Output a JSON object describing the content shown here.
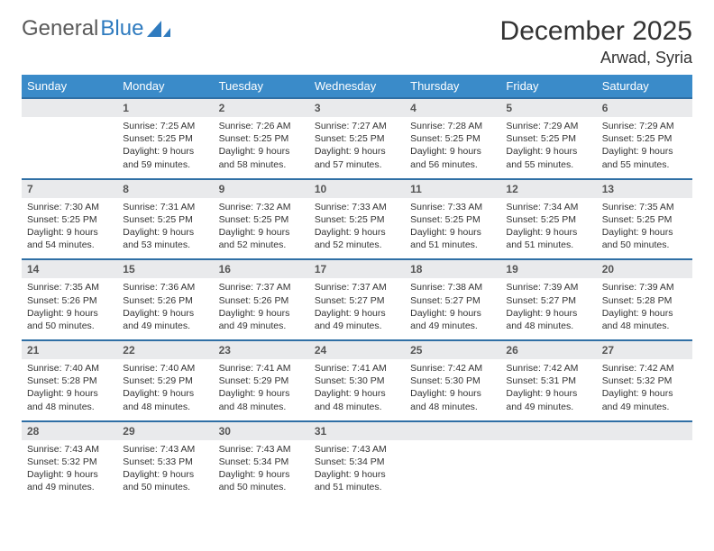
{
  "brand": {
    "part1": "General",
    "part2": "Blue"
  },
  "title": "December 2025",
  "location": "Arwad, Syria",
  "colors": {
    "header_bg": "#3a8bc9",
    "header_text": "#ffffff",
    "daynum_bg": "#e9eaec",
    "row_top_border": "#2f6fa5",
    "brand_gray": "#5a5a5a",
    "brand_blue": "#2f7bbf",
    "body_text": "#333333",
    "page_bg": "#ffffff"
  },
  "weekdays": [
    "Sunday",
    "Monday",
    "Tuesday",
    "Wednesday",
    "Thursday",
    "Friday",
    "Saturday"
  ],
  "weeks": [
    [
      null,
      {
        "n": "1",
        "sr": "Sunrise: 7:25 AM",
        "ss": "Sunset: 5:25 PM",
        "dl1": "Daylight: 9 hours",
        "dl2": "and 59 minutes."
      },
      {
        "n": "2",
        "sr": "Sunrise: 7:26 AM",
        "ss": "Sunset: 5:25 PM",
        "dl1": "Daylight: 9 hours",
        "dl2": "and 58 minutes."
      },
      {
        "n": "3",
        "sr": "Sunrise: 7:27 AM",
        "ss": "Sunset: 5:25 PM",
        "dl1": "Daylight: 9 hours",
        "dl2": "and 57 minutes."
      },
      {
        "n": "4",
        "sr": "Sunrise: 7:28 AM",
        "ss": "Sunset: 5:25 PM",
        "dl1": "Daylight: 9 hours",
        "dl2": "and 56 minutes."
      },
      {
        "n": "5",
        "sr": "Sunrise: 7:29 AM",
        "ss": "Sunset: 5:25 PM",
        "dl1": "Daylight: 9 hours",
        "dl2": "and 55 minutes."
      },
      {
        "n": "6",
        "sr": "Sunrise: 7:29 AM",
        "ss": "Sunset: 5:25 PM",
        "dl1": "Daylight: 9 hours",
        "dl2": "and 55 minutes."
      }
    ],
    [
      {
        "n": "7",
        "sr": "Sunrise: 7:30 AM",
        "ss": "Sunset: 5:25 PM",
        "dl1": "Daylight: 9 hours",
        "dl2": "and 54 minutes."
      },
      {
        "n": "8",
        "sr": "Sunrise: 7:31 AM",
        "ss": "Sunset: 5:25 PM",
        "dl1": "Daylight: 9 hours",
        "dl2": "and 53 minutes."
      },
      {
        "n": "9",
        "sr": "Sunrise: 7:32 AM",
        "ss": "Sunset: 5:25 PM",
        "dl1": "Daylight: 9 hours",
        "dl2": "and 52 minutes."
      },
      {
        "n": "10",
        "sr": "Sunrise: 7:33 AM",
        "ss": "Sunset: 5:25 PM",
        "dl1": "Daylight: 9 hours",
        "dl2": "and 52 minutes."
      },
      {
        "n": "11",
        "sr": "Sunrise: 7:33 AM",
        "ss": "Sunset: 5:25 PM",
        "dl1": "Daylight: 9 hours",
        "dl2": "and 51 minutes."
      },
      {
        "n": "12",
        "sr": "Sunrise: 7:34 AM",
        "ss": "Sunset: 5:25 PM",
        "dl1": "Daylight: 9 hours",
        "dl2": "and 51 minutes."
      },
      {
        "n": "13",
        "sr": "Sunrise: 7:35 AM",
        "ss": "Sunset: 5:25 PM",
        "dl1": "Daylight: 9 hours",
        "dl2": "and 50 minutes."
      }
    ],
    [
      {
        "n": "14",
        "sr": "Sunrise: 7:35 AM",
        "ss": "Sunset: 5:26 PM",
        "dl1": "Daylight: 9 hours",
        "dl2": "and 50 minutes."
      },
      {
        "n": "15",
        "sr": "Sunrise: 7:36 AM",
        "ss": "Sunset: 5:26 PM",
        "dl1": "Daylight: 9 hours",
        "dl2": "and 49 minutes."
      },
      {
        "n": "16",
        "sr": "Sunrise: 7:37 AM",
        "ss": "Sunset: 5:26 PM",
        "dl1": "Daylight: 9 hours",
        "dl2": "and 49 minutes."
      },
      {
        "n": "17",
        "sr": "Sunrise: 7:37 AM",
        "ss": "Sunset: 5:27 PM",
        "dl1": "Daylight: 9 hours",
        "dl2": "and 49 minutes."
      },
      {
        "n": "18",
        "sr": "Sunrise: 7:38 AM",
        "ss": "Sunset: 5:27 PM",
        "dl1": "Daylight: 9 hours",
        "dl2": "and 49 minutes."
      },
      {
        "n": "19",
        "sr": "Sunrise: 7:39 AM",
        "ss": "Sunset: 5:27 PM",
        "dl1": "Daylight: 9 hours",
        "dl2": "and 48 minutes."
      },
      {
        "n": "20",
        "sr": "Sunrise: 7:39 AM",
        "ss": "Sunset: 5:28 PM",
        "dl1": "Daylight: 9 hours",
        "dl2": "and 48 minutes."
      }
    ],
    [
      {
        "n": "21",
        "sr": "Sunrise: 7:40 AM",
        "ss": "Sunset: 5:28 PM",
        "dl1": "Daylight: 9 hours",
        "dl2": "and 48 minutes."
      },
      {
        "n": "22",
        "sr": "Sunrise: 7:40 AM",
        "ss": "Sunset: 5:29 PM",
        "dl1": "Daylight: 9 hours",
        "dl2": "and 48 minutes."
      },
      {
        "n": "23",
        "sr": "Sunrise: 7:41 AM",
        "ss": "Sunset: 5:29 PM",
        "dl1": "Daylight: 9 hours",
        "dl2": "and 48 minutes."
      },
      {
        "n": "24",
        "sr": "Sunrise: 7:41 AM",
        "ss": "Sunset: 5:30 PM",
        "dl1": "Daylight: 9 hours",
        "dl2": "and 48 minutes."
      },
      {
        "n": "25",
        "sr": "Sunrise: 7:42 AM",
        "ss": "Sunset: 5:30 PM",
        "dl1": "Daylight: 9 hours",
        "dl2": "and 48 minutes."
      },
      {
        "n": "26",
        "sr": "Sunrise: 7:42 AM",
        "ss": "Sunset: 5:31 PM",
        "dl1": "Daylight: 9 hours",
        "dl2": "and 49 minutes."
      },
      {
        "n": "27",
        "sr": "Sunrise: 7:42 AM",
        "ss": "Sunset: 5:32 PM",
        "dl1": "Daylight: 9 hours",
        "dl2": "and 49 minutes."
      }
    ],
    [
      {
        "n": "28",
        "sr": "Sunrise: 7:43 AM",
        "ss": "Sunset: 5:32 PM",
        "dl1": "Daylight: 9 hours",
        "dl2": "and 49 minutes."
      },
      {
        "n": "29",
        "sr": "Sunrise: 7:43 AM",
        "ss": "Sunset: 5:33 PM",
        "dl1": "Daylight: 9 hours",
        "dl2": "and 50 minutes."
      },
      {
        "n": "30",
        "sr": "Sunrise: 7:43 AM",
        "ss": "Sunset: 5:34 PM",
        "dl1": "Daylight: 9 hours",
        "dl2": "and 50 minutes."
      },
      {
        "n": "31",
        "sr": "Sunrise: 7:43 AM",
        "ss": "Sunset: 5:34 PM",
        "dl1": "Daylight: 9 hours",
        "dl2": "and 51 minutes."
      },
      null,
      null,
      null
    ]
  ]
}
